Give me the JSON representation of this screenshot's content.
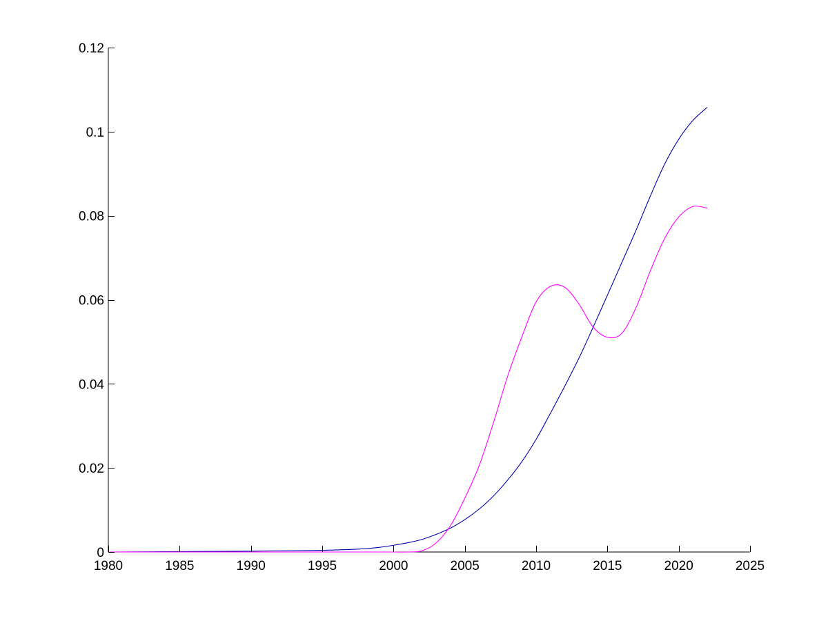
{
  "chart_data": {
    "type": "line",
    "title": "",
    "xlabel": "",
    "ylabel": "",
    "xlim": [
      1980,
      2025
    ],
    "ylim": [
      0,
      0.12
    ],
    "x_ticks": [
      1980,
      1985,
      1990,
      1995,
      2000,
      2005,
      2010,
      2015,
      2020,
      2025
    ],
    "y_ticks": [
      0,
      0.02,
      0.04,
      0.06,
      0.08,
      0.1,
      0.12
    ],
    "x_tick_labels": [
      "1980",
      "1985",
      "1990",
      "1995",
      "2000",
      "2005",
      "2010",
      "2015",
      "2020",
      "2025"
    ],
    "y_tick_labels": [
      "0",
      "0.02",
      "0.04",
      "0.06",
      "0.08",
      "0.1",
      "0.12"
    ],
    "grid": false,
    "legend": "none",
    "series": [
      {
        "color": "#0000a8",
        "x": [
          1980,
          1985,
          1990,
          1993,
          1995,
          1997,
          1998,
          1999,
          2000,
          2001,
          2002,
          2003,
          2004,
          2005,
          2006,
          2007,
          2008,
          2009,
          2010,
          2011,
          2012,
          2013,
          2014,
          2015,
          2016,
          2017,
          2018,
          2019,
          2020,
          2021,
          2022
        ],
        "values": [
          0,
          0.0001,
          0.0002,
          0.0003,
          0.0004,
          0.0006,
          0.0008,
          0.0011,
          0.0016,
          0.0022,
          0.003,
          0.0042,
          0.0057,
          0.0077,
          0.0102,
          0.0133,
          0.0171,
          0.0215,
          0.0268,
          0.033,
          0.0394,
          0.0461,
          0.0535,
          0.0611,
          0.0688,
          0.0765,
          0.0846,
          0.0922,
          0.0982,
          0.1027,
          0.1058
        ]
      },
      {
        "color": "#ff00ff",
        "x": [
          1980,
          1985,
          1990,
          1995,
          2000,
          2001,
          2002,
          2003,
          2004,
          2005,
          2006,
          2007,
          2008,
          2009,
          2010,
          2011,
          2012,
          2013,
          2014,
          2015,
          2016,
          2017,
          2018,
          2019,
          2020,
          2021,
          2022
        ],
        "values": [
          0,
          0,
          0,
          0,
          0,
          0,
          0.0003,
          0.0022,
          0.0063,
          0.0128,
          0.0205,
          0.0307,
          0.0418,
          0.0512,
          0.0595,
          0.0632,
          0.063,
          0.059,
          0.0535,
          0.0511,
          0.052,
          0.0581,
          0.0668,
          0.0745,
          0.0797,
          0.0822,
          0.0818
        ]
      }
    ]
  }
}
